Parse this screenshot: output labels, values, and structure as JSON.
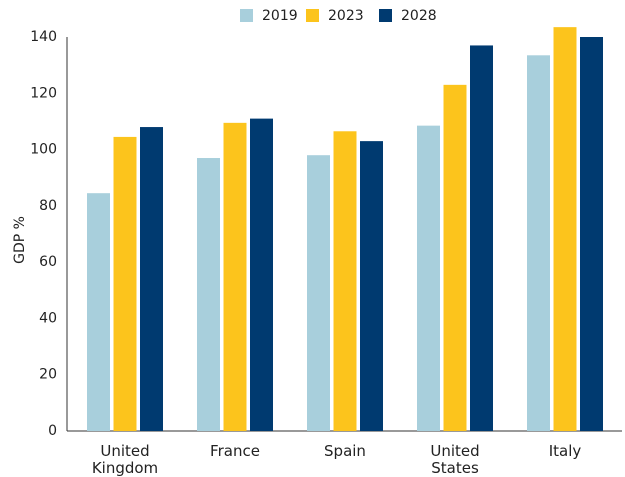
{
  "chart_data": {
    "type": "bar",
    "y_label": "GDP %",
    "categories": [
      "United Kingdom",
      "France",
      "Spain",
      "United States",
      "Italy"
    ],
    "series": [
      {
        "name": "2019",
        "color": "#a8cfdc",
        "values": [
          84.5,
          97,
          98,
          108.5,
          133.5
        ]
      },
      {
        "name": "2023",
        "color": "#fcc41c",
        "values": [
          104.5,
          109.5,
          106.5,
          123,
          143.5
        ]
      },
      {
        "name": "2028",
        "color": "#003a70",
        "values": [
          108,
          111,
          103,
          137,
          140
        ]
      }
    ],
    "ylim": [
      0,
      140
    ],
    "yticks": [
      0,
      20,
      40,
      60,
      80,
      100,
      120,
      140
    ],
    "grid": false,
    "legend": "top"
  }
}
